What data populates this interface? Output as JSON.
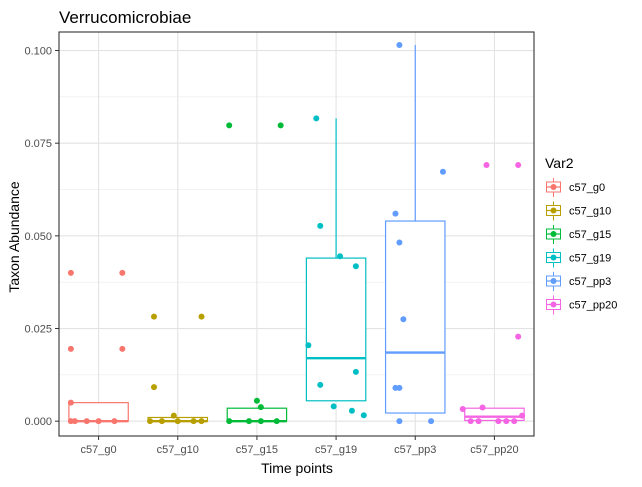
{
  "chart_data": {
    "type": "box",
    "title": "Verrucomicrobiae",
    "xlabel": "Time points",
    "ylabel": "Taxon Abundance",
    "ylim": [
      -0.004,
      0.105
    ],
    "y_ticks": [
      0.0,
      0.025,
      0.05,
      0.075,
      0.1
    ],
    "y_tick_labels": [
      "0.000",
      "0.025",
      "0.050",
      "0.075",
      "0.100"
    ],
    "grid": true,
    "legend": {
      "title": "Var2",
      "placement": "right"
    },
    "categories": [
      "c57_g0",
      "c57_g10",
      "c57_g15",
      "c57_g19",
      "c57_pp3",
      "c57_pp20"
    ],
    "series": [
      {
        "name": "c57_g0",
        "color": "#F8766D",
        "box": {
          "min": 0.0,
          "q1": 0.0,
          "median": 0.0,
          "q3": 0.005,
          "max": 0.005
        },
        "points": [
          {
            "x": -0.35,
            "y": 0.0
          },
          {
            "x": -0.3,
            "y": 0.0
          },
          {
            "x": -0.15,
            "y": 0.0
          },
          {
            "x": 0.0,
            "y": 0.0
          },
          {
            "x": 0.2,
            "y": 0.0
          },
          {
            "x": -0.35,
            "y": 0.04
          },
          {
            "x": 0.3,
            "y": 0.04
          },
          {
            "x": -0.35,
            "y": 0.0195
          },
          {
            "x": 0.3,
            "y": 0.0195
          },
          {
            "x": -0.35,
            "y": 0.005
          }
        ]
      },
      {
        "name": "c57_g10",
        "color": "#B79F00",
        "box": {
          "min": 0.0,
          "q1": 0.0,
          "median": 0.0,
          "q3": 0.001,
          "max": 0.001
        },
        "points": [
          {
            "x": -0.35,
            "y": 0.0
          },
          {
            "x": -0.2,
            "y": 0.0
          },
          {
            "x": 0.0,
            "y": 0.0
          },
          {
            "x": 0.2,
            "y": 0.0
          },
          {
            "x": 0.3,
            "y": 0.0
          },
          {
            "x": -0.05,
            "y": 0.0015
          },
          {
            "x": -0.3,
            "y": 0.0092
          },
          {
            "x": -0.3,
            "y": 0.0282
          },
          {
            "x": 0.3,
            "y": 0.0282
          }
        ]
      },
      {
        "name": "c57_g15",
        "color": "#00BA38",
        "box": {
          "min": 0.0,
          "q1": 0.0,
          "median": 0.0,
          "q3": 0.0035,
          "max": 0.0035
        },
        "points": [
          {
            "x": -0.35,
            "y": 0.0
          },
          {
            "x": -0.1,
            "y": 0.0
          },
          {
            "x": 0.05,
            "y": 0.0
          },
          {
            "x": 0.25,
            "y": 0.0
          },
          {
            "x": 0.0,
            "y": 0.0055
          },
          {
            "x": 0.05,
            "y": 0.0038
          },
          {
            "x": -0.35,
            "y": 0.0798
          },
          {
            "x": 0.3,
            "y": 0.0798
          }
        ]
      },
      {
        "name": "c57_g19",
        "color": "#00BFC4",
        "box": {
          "min": 0.0055,
          "q1": 0.0055,
          "median": 0.017,
          "q3": 0.044,
          "max": 0.0817
        },
        "points": [
          {
            "x": 0.25,
            "y": 0.0418
          },
          {
            "x": 0.05,
            "y": 0.0445
          },
          {
            "x": -0.2,
            "y": 0.0527
          },
          {
            "x": -0.25,
            "y": 0.0817
          },
          {
            "x": -0.35,
            "y": 0.0205
          },
          {
            "x": 0.25,
            "y": 0.0133
          },
          {
            "x": -0.2,
            "y": 0.0098
          },
          {
            "x": -0.03,
            "y": 0.004
          },
          {
            "x": 0.2,
            "y": 0.0028
          },
          {
            "x": 0.35,
            "y": 0.0016
          }
        ]
      },
      {
        "name": "c57_pp3",
        "color": "#619CFF",
        "box": {
          "min": 0.0022,
          "q1": 0.0022,
          "median": 0.0185,
          "q3": 0.054,
          "max": 0.1015
        },
        "points": [
          {
            "x": -0.2,
            "y": 0.1015
          },
          {
            "x": 0.35,
            "y": 0.0673
          },
          {
            "x": -0.25,
            "y": 0.056
          },
          {
            "x": -0.2,
            "y": 0.0482
          },
          {
            "x": -0.15,
            "y": 0.0275
          },
          {
            "x": -0.25,
            "y": 0.009
          },
          {
            "x": -0.2,
            "y": 0.009
          },
          {
            "x": -0.2,
            "y": 0.0
          },
          {
            "x": 0.2,
            "y": 0.0
          }
        ]
      },
      {
        "name": "c57_pp20",
        "color": "#F564E3",
        "box": {
          "min": 0.0,
          "q1": 0.0002,
          "median": 0.0012,
          "q3": 0.0035,
          "max": 0.0035
        },
        "points": [
          {
            "x": -0.1,
            "y": 0.0691
          },
          {
            "x": 0.3,
            "y": 0.0691
          },
          {
            "x": 0.3,
            "y": 0.0228
          },
          {
            "x": -0.4,
            "y": 0.0033
          },
          {
            "x": -0.15,
            "y": 0.0037
          },
          {
            "x": 0.35,
            "y": 0.0015
          },
          {
            "x": -0.3,
            "y": 0.0
          },
          {
            "x": -0.2,
            "y": 0.0
          },
          {
            "x": 0.05,
            "y": 0.0
          },
          {
            "x": 0.15,
            "y": 0.0
          },
          {
            "x": 0.25,
            "y": 0.0
          }
        ]
      }
    ]
  }
}
